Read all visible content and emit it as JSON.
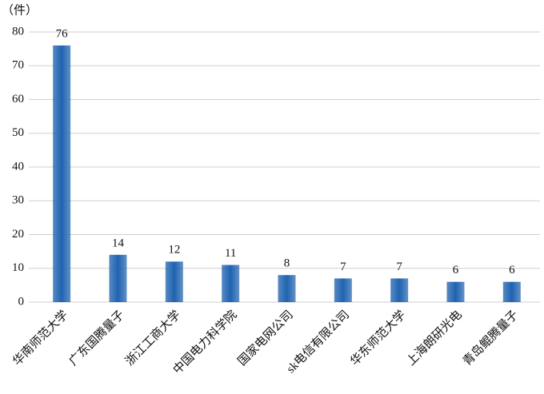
{
  "chart_data": {
    "type": "bar",
    "y_label": "（件）",
    "categories": [
      "华南师范大学",
      "广东国腾量子",
      "浙江工商大学",
      "中国电力科学院",
      "国家电网公司",
      "sk电信有限公司",
      "华东师范大学",
      "上海朗研光电",
      "青岛鲲腾量子"
    ],
    "values": [
      76,
      14,
      12,
      11,
      8,
      7,
      7,
      6,
      6
    ],
    "color": "#1f63b0",
    "ylim": [
      0,
      80
    ],
    "yticks": [
      0,
      10,
      20,
      30,
      40,
      50,
      60,
      70,
      80
    ],
    "grid": true
  }
}
